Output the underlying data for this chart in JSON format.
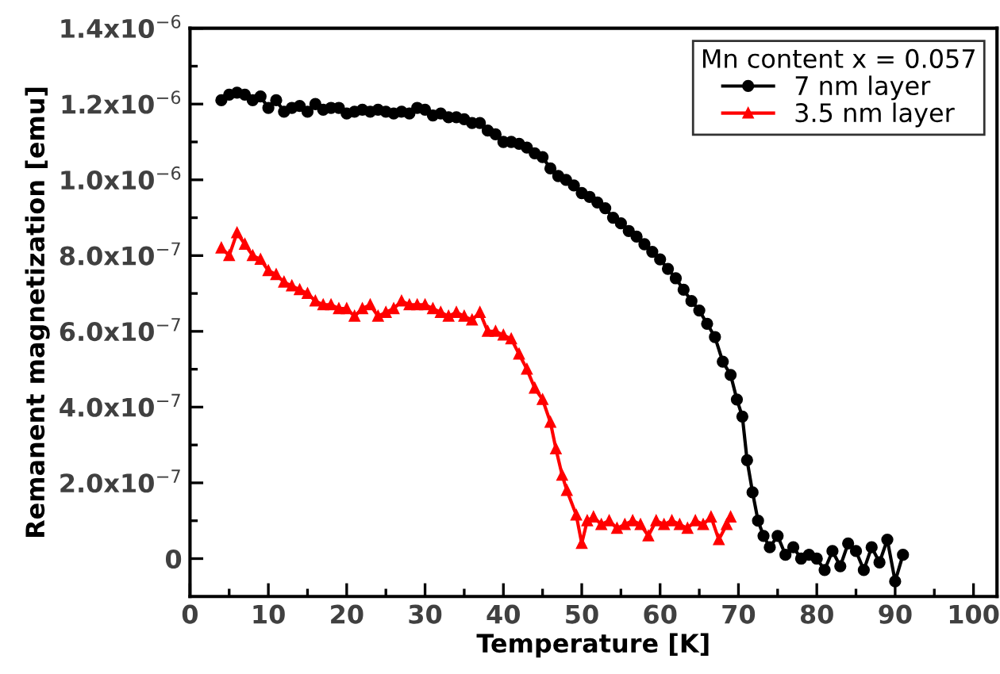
{
  "chart_data": {
    "type": "line",
    "xlabel": "Temperature [K]",
    "ylabel": "Remanent magnetization [emu]",
    "legend_title": "Mn content x = 0.057",
    "xlim": [
      0,
      103
    ],
    "ylim": [
      -1e-07,
      1.4e-06
    ],
    "xticks": [
      0,
      {
        "value": 5,
        "label": null
      },
      10,
      {
        "value": 15,
        "label": null
      },
      20,
      {
        "value": 25,
        "label": null
      },
      30,
      {
        "value": 35,
        "label": null
      },
      40,
      {
        "value": 45,
        "label": null
      },
      50,
      {
        "value": 55,
        "label": null
      },
      60,
      {
        "value": 65,
        "label": null
      },
      70,
      {
        "value": 75,
        "label": null
      },
      80,
      {
        "value": 85,
        "label": null
      },
      90,
      {
        "value": 95,
        "label": null
      },
      100
    ],
    "yticks": [
      0,
      {
        "value": 1e-07,
        "label": null
      },
      {
        "value": 2e-07,
        "label": "2.0x10$^{−7}$"
      },
      {
        "value": 3e-07,
        "label": null
      },
      {
        "value": 4e-07,
        "label": "4.0x10$^{−7}$"
      },
      {
        "value": 5e-07,
        "label": null
      },
      {
        "value": 6e-07,
        "label": "6.0x10$^{−7}$"
      },
      {
        "value": 7e-07,
        "label": null
      },
      {
        "value": 8e-07,
        "label": "8.0x10$^{−7}$"
      },
      {
        "value": 9e-07,
        "label": null
      },
      {
        "value": 1e-06,
        "label": "1.0x10$^{−6}$"
      },
      {
        "value": 1.1e-06,
        "label": null
      },
      {
        "value": 1.2e-06,
        "label": "1.2x10$^{−6}$"
      },
      {
        "value": 1.3e-06,
        "label": null
      },
      {
        "value": 1.4e-06,
        "label": "1.4x10$^{−6}$"
      }
    ],
    "grid": false,
    "legend": "top right",
    "line_style": "solid",
    "series": [
      {
        "name": "7 nm layer",
        "color": "#000000",
        "marker": "circle",
        "x": [
          4,
          5,
          6,
          7,
          8,
          9,
          10,
          11,
          12,
          13,
          14,
          15,
          16,
          17,
          18,
          19,
          20,
          21,
          22,
          23,
          24,
          25,
          26,
          27,
          28,
          29,
          30,
          31,
          32,
          33,
          34,
          35,
          36,
          37,
          38,
          39,
          40,
          41,
          42,
          43,
          44,
          45,
          46,
          47,
          48,
          49,
          50,
          51,
          52,
          53,
          54,
          55,
          56,
          57,
          58,
          59,
          60,
          61,
          62,
          63,
          64,
          65,
          66,
          67,
          68,
          69,
          69.8,
          70.5,
          71.1,
          71.8,
          72.5,
          73.2,
          74,
          75,
          76,
          77,
          78,
          79,
          80,
          81,
          82,
          83,
          84,
          85,
          86,
          87,
          88,
          89,
          90,
          91
        ],
        "values": [
          1.21e-06,
          1.225e-06,
          1.23e-06,
          1.225e-06,
          1.21e-06,
          1.22e-06,
          1.19e-06,
          1.21e-06,
          1.18e-06,
          1.19e-06,
          1.195e-06,
          1.18e-06,
          1.2e-06,
          1.185e-06,
          1.19e-06,
          1.19e-06,
          1.175e-06,
          1.18e-06,
          1.185e-06,
          1.18e-06,
          1.185e-06,
          1.18e-06,
          1.175e-06,
          1.18e-06,
          1.175e-06,
          1.19e-06,
          1.185e-06,
          1.17e-06,
          1.175e-06,
          1.165e-06,
          1.165e-06,
          1.16e-06,
          1.15e-06,
          1.15e-06,
          1.13e-06,
          1.12e-06,
          1.1e-06,
          1.1e-06,
          1.095e-06,
          1.085e-06,
          1.07e-06,
          1.06e-06,
          1.03e-06,
          1.01e-06,
          1e-06,
          9.85e-07,
          9.65e-07,
          9.55e-07,
          9.4e-07,
          9.25e-07,
          9e-07,
          8.85e-07,
          8.65e-07,
          8.5e-07,
          8.3e-07,
          8.1e-07,
          7.9e-07,
          7.65e-07,
          7.4e-07,
          7.1e-07,
          6.8e-07,
          6.55e-07,
          6.2e-07,
          5.85e-07,
          5.2e-07,
          4.85e-07,
          4.2e-07,
          3.75e-07,
          2.6e-07,
          1.75e-07,
          1e-07,
          6e-08,
          3e-08,
          6e-08,
          1e-08,
          3e-08,
          0,
          1e-08,
          0,
          -3e-08,
          2e-08,
          -2e-08,
          4e-08,
          2e-08,
          -3e-08,
          3e-08,
          -1e-08,
          5e-08,
          -6e-08,
          1e-08
        ]
      },
      {
        "name": "3.5 nm layer",
        "color": "#ff0000",
        "marker": "triangle",
        "x": [
          4,
          5,
          6,
          7,
          8,
          9,
          10,
          11,
          12,
          13,
          14,
          15,
          16,
          17,
          18,
          19,
          20,
          21,
          22,
          23,
          24,
          25,
          26,
          27,
          28,
          29,
          30,
          31,
          32,
          33,
          34,
          35,
          36,
          37,
          38,
          39,
          40,
          41,
          42,
          43,
          44,
          45,
          46,
          46.7,
          47.5,
          48.1,
          49.3,
          50,
          50.7,
          51.5,
          52.5,
          53.5,
          54.5,
          55.5,
          56.5,
          57.5,
          58.5,
          59.5,
          60.5,
          61.5,
          62.5,
          63.5,
          64.5,
          65.5,
          66.5,
          67.5,
          68.5,
          69
        ],
        "values": [
          8.2e-07,
          8e-07,
          8.6e-07,
          8.3e-07,
          8e-07,
          7.9e-07,
          7.6e-07,
          7.5e-07,
          7.3e-07,
          7.2e-07,
          7.1e-07,
          7e-07,
          6.8e-07,
          6.7e-07,
          6.7e-07,
          6.6e-07,
          6.6e-07,
          6.4e-07,
          6.6e-07,
          6.7e-07,
          6.4e-07,
          6.5e-07,
          6.6e-07,
          6.8e-07,
          6.7e-07,
          6.7e-07,
          6.7e-07,
          6.6e-07,
          6.5e-07,
          6.4e-07,
          6.5e-07,
          6.4e-07,
          6.3e-07,
          6.5e-07,
          6e-07,
          6e-07,
          5.9e-07,
          5.8e-07,
          5.4e-07,
          5e-07,
          4.5e-07,
          4.2e-07,
          3.6e-07,
          2.9e-07,
          2.2e-07,
          1.8e-07,
          1.15e-07,
          4e-08,
          1e-07,
          1.1e-07,
          9e-08,
          1e-07,
          8e-08,
          9e-08,
          1e-07,
          9e-08,
          6e-08,
          1e-07,
          9e-08,
          1e-07,
          9e-08,
          8e-08,
          1e-07,
          9e-08,
          1.1e-07,
          5e-08,
          9e-08,
          1.1e-07
        ]
      }
    ]
  }
}
